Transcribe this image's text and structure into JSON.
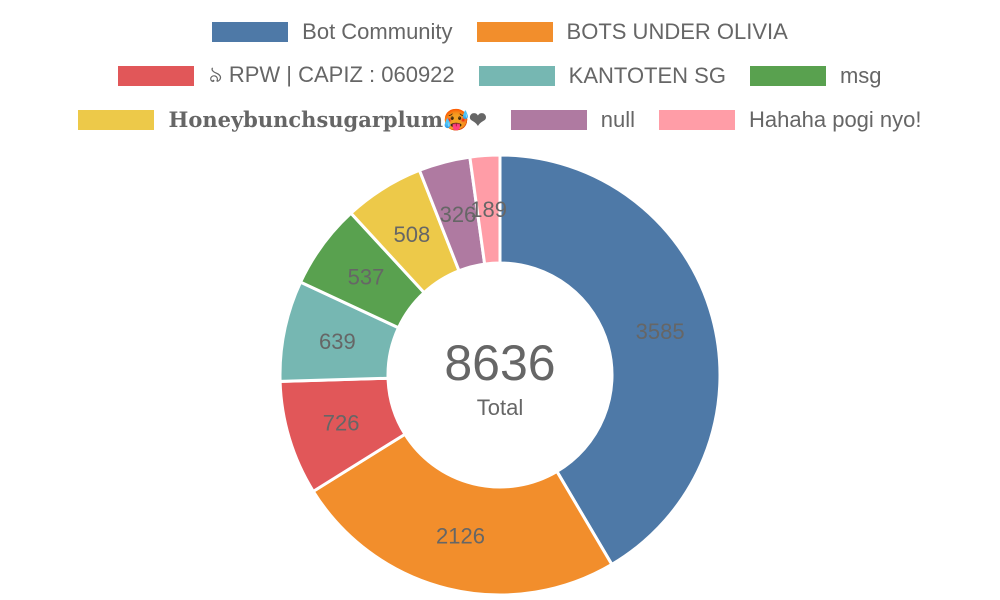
{
  "chart_data": {
    "type": "doughnut",
    "categories": [
      "Bot Community",
      "BOTS UNDER OLIVIA",
      "৯ RPW | CAPIZ : 060922",
      "KANTOTEN SG",
      "msg",
      "𝐇𝐨𝐧𝐞𝐲𝐛𝐮𝐧𝐜𝐡𝐬𝐮𝐠𝐚𝐫𝐩𝐥𝐮𝐦🥵❤",
      "null",
      "Hahaha pogi nyo!"
    ],
    "values": [
      3585,
      2126,
      726,
      639,
      537,
      508,
      326,
      189
    ],
    "colors": [
      "#4e79a7",
      "#f28e2c",
      "#e15759",
      "#76b7b2",
      "#59a14f",
      "#edc949",
      "#af7aa1",
      "#ff9da7"
    ],
    "total": "8636",
    "total_caption": "Total",
    "legend_position": "top"
  }
}
